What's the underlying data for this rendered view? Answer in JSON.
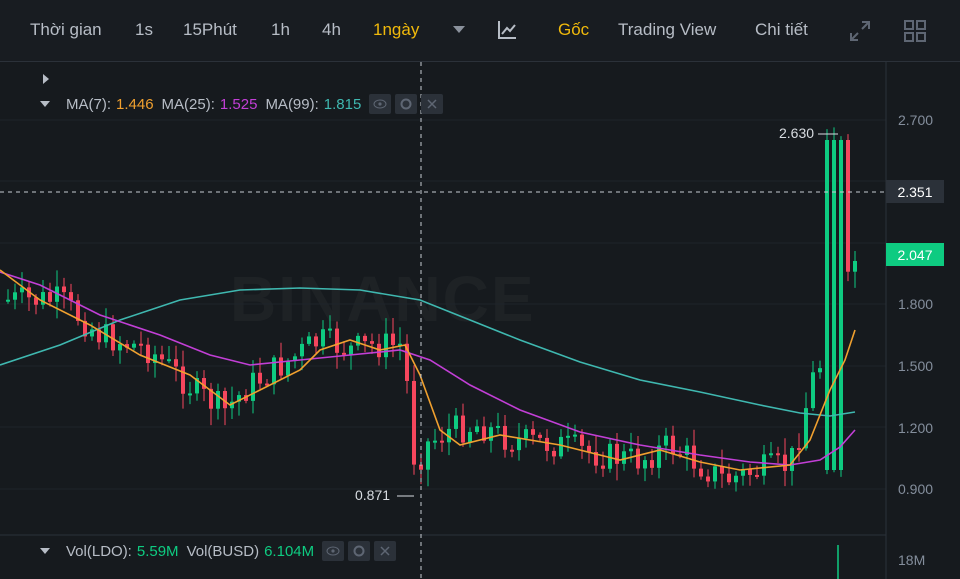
{
  "toolbar": {
    "time_label": "Thời gian",
    "intervals": [
      "1s",
      "15Phút",
      "1h",
      "4h",
      "1ngày"
    ],
    "active_interval": "1ngày",
    "views": [
      "Gốc",
      "Trading View",
      "Chi tiết"
    ],
    "active_view": "Gốc",
    "icons": [
      "caret-down-icon",
      "chart-tool-icon",
      "expand-icon",
      "grid-layout-icon"
    ]
  },
  "legend": {
    "ma7_label": "MA(7):",
    "ma7_value": "1.446",
    "ma25_label": "MA(25):",
    "ma25_value": "1.525",
    "ma99_label": "MA(99):",
    "ma99_value": "1.815"
  },
  "volume_legend": {
    "vol1_label": "Vol(LDO):",
    "vol1_value": "5.59M",
    "vol2_label": "Vol(BUSD)",
    "vol2_value": "6.104M"
  },
  "price_axis": [
    "2.700",
    "1.800",
    "1.500",
    "1.200",
    "0.900"
  ],
  "volume_axis": "18M",
  "crosshair_price": "2.351",
  "last_price": "2.047",
  "annotations": {
    "high": "2.630",
    "low": "0.871"
  },
  "watermark": "BINANCE",
  "colors": {
    "up": "#0ecb81",
    "down": "#f6465d",
    "ma7": "#f0a02f",
    "ma25": "#c23fd6",
    "ma99": "#3fb8b0",
    "accent": "#f0b90b"
  }
}
